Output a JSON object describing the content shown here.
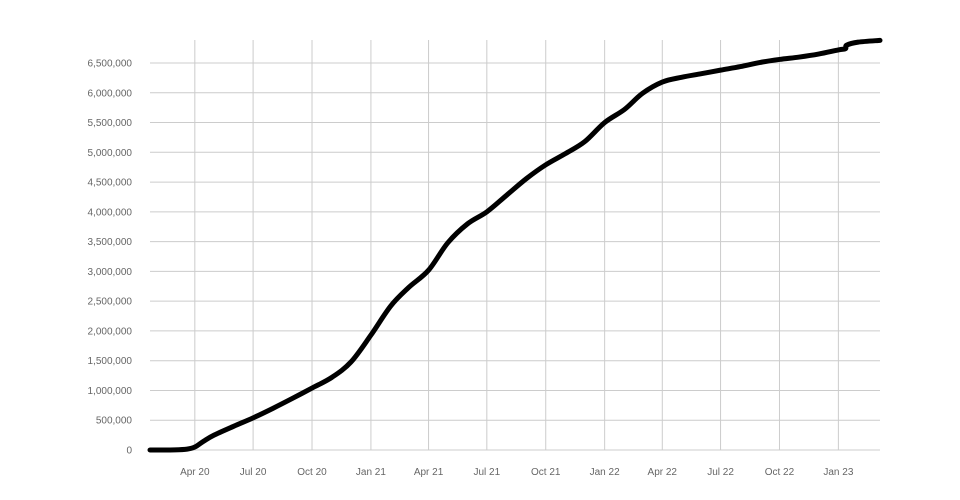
{
  "chart_data": {
    "type": "line",
    "title": "",
    "xlabel": "",
    "ylabel": "",
    "grid": true,
    "legend": "none",
    "line_color": "#000000",
    "grid_color": "#cccccc",
    "xlim": [
      "2020-01-22",
      "2023-03-07"
    ],
    "ylim": [
      0,
      6900000
    ],
    "x_ticks": [
      {
        "date": "2020-04-01",
        "label": "Apr 20"
      },
      {
        "date": "2020-07-01",
        "label": "Jul 20"
      },
      {
        "date": "2020-10-01",
        "label": "Oct 20"
      },
      {
        "date": "2021-01-01",
        "label": "Jan 21"
      },
      {
        "date": "2021-04-01",
        "label": "Apr 21"
      },
      {
        "date": "2021-07-01",
        "label": "Jul 21"
      },
      {
        "date": "2021-10-01",
        "label": "Oct 21"
      },
      {
        "date": "2022-01-01",
        "label": "Jan 22"
      },
      {
        "date": "2022-04-01",
        "label": "Apr 22"
      },
      {
        "date": "2022-07-01",
        "label": "Jul 22"
      },
      {
        "date": "2022-10-01",
        "label": "Oct 22"
      },
      {
        "date": "2023-01-01",
        "label": "Jan 23"
      }
    ],
    "y_ticks": [
      {
        "value": 0,
        "label": "0"
      },
      {
        "value": 500000,
        "label": "500,000"
      },
      {
        "value": 1000000,
        "label": "1,000,000"
      },
      {
        "value": 1500000,
        "label": "1,500,000"
      },
      {
        "value": 2000000,
        "label": "2,000,000"
      },
      {
        "value": 2500000,
        "label": "2,500,000"
      },
      {
        "value": 3000000,
        "label": "3,000,000"
      },
      {
        "value": 3500000,
        "label": "3,500,000"
      },
      {
        "value": 4000000,
        "label": "4,000,000"
      },
      {
        "value": 4500000,
        "label": "4,500,000"
      },
      {
        "value": 5000000,
        "label": "5,000,000"
      },
      {
        "value": 5500000,
        "label": "5,500,000"
      },
      {
        "value": 6000000,
        "label": "6,000,000"
      },
      {
        "value": 6500000,
        "label": "6,500,000"
      }
    ],
    "series": [
      {
        "x": [
          "2020-01-22",
          "2020-03-01",
          "2020-03-20",
          "2020-04-01",
          "2020-04-15",
          "2020-05-01",
          "2020-06-01",
          "2020-07-01",
          "2020-08-01",
          "2020-09-01",
          "2020-10-01",
          "2020-11-01",
          "2020-12-01",
          "2021-01-01",
          "2021-02-01",
          "2021-03-01",
          "2021-04-01",
          "2021-05-01",
          "2021-06-01",
          "2021-07-01",
          "2021-08-01",
          "2021-09-01",
          "2021-10-01",
          "2021-11-01",
          "2021-12-01",
          "2022-01-01",
          "2022-02-01",
          "2022-03-01",
          "2022-04-01",
          "2022-05-01",
          "2022-06-01",
          "2022-07-01",
          "2022-08-01",
          "2022-09-01",
          "2022-10-01",
          "2022-11-01",
          "2022-12-01",
          "2023-01-01",
          "2023-01-12",
          "2023-01-14",
          "2023-02-01",
          "2023-03-07"
        ],
        "values": [
          0,
          3000,
          15000,
          50000,
          150000,
          250000,
          400000,
          540000,
          700000,
          870000,
          1040000,
          1220000,
          1480000,
          1930000,
          2420000,
          2730000,
          3020000,
          3480000,
          3800000,
          4000000,
          4280000,
          4560000,
          4790000,
          4980000,
          5180000,
          5500000,
          5720000,
          5990000,
          6180000,
          6260000,
          6320000,
          6380000,
          6440000,
          6510000,
          6560000,
          6600000,
          6650000,
          6720000,
          6740000,
          6800000,
          6850000,
          6880000
        ]
      }
    ]
  }
}
